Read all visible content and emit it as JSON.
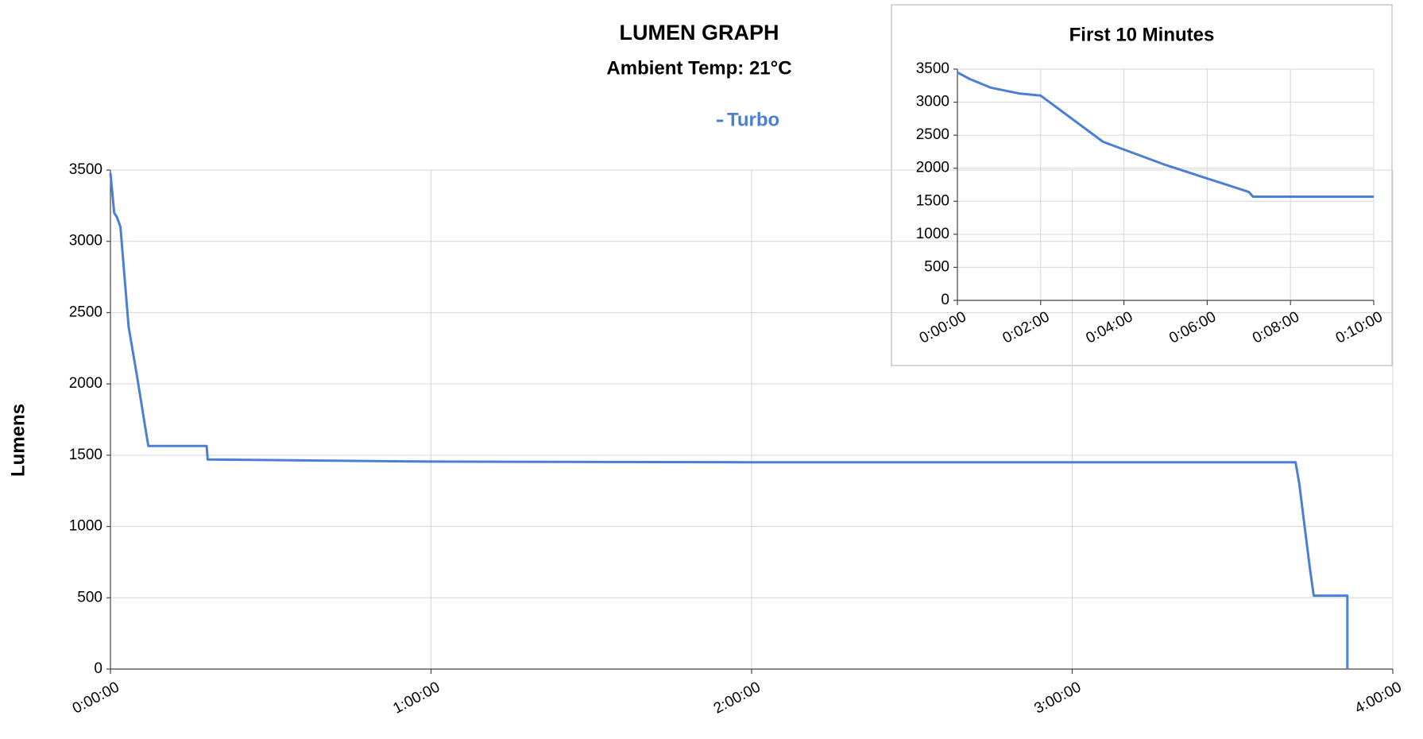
{
  "chart_data": [
    {
      "type": "line",
      "title": "LUMEN GRAPH",
      "subtitle": "Ambient Temp: 21°C",
      "y_label": "Lumens",
      "series": [
        {
          "name": "Turbo",
          "color": "#4a7fd4",
          "x": [
            0,
            0.7,
            1.2,
            1.6,
            1.87,
            3.4,
            5.0,
            6.5,
            7.1,
            18.0,
            18.2,
            60,
            120,
            180,
            221.8,
            222.5,
            223.5,
            224.5,
            225.2,
            231.5,
            231.5
          ],
          "values": [
            3480,
            3200,
            3170,
            3130,
            3100,
            2400,
            2050,
            1700,
            1565,
            1565,
            1470,
            1455,
            1450,
            1450,
            1450,
            1300,
            1000,
            700,
            515,
            515,
            0
          ]
        }
      ],
      "xlim": [
        0,
        240
      ],
      "xticks": [
        {
          "value": 0,
          "label": "0:00:00"
        },
        {
          "value": 60,
          "label": "1:00:00"
        },
        {
          "value": 120,
          "label": "2:00:00"
        },
        {
          "value": 180,
          "label": "3:00:00"
        },
        {
          "value": 240,
          "label": "4:00:00"
        }
      ],
      "ylim": [
        0,
        3500
      ],
      "yticks": [
        0,
        500,
        1000,
        1500,
        2000,
        2500,
        3000,
        3500
      ],
      "grid": true,
      "legend": "top"
    },
    {
      "type": "line",
      "title": "First 10 Minutes",
      "series": [
        {
          "name": "Turbo",
          "color": "#4a7fd4",
          "x": [
            0,
            0.3,
            0.8,
            1.5,
            2.0,
            3.5,
            5.0,
            7.0,
            7.1,
            10
          ],
          "values": [
            3450,
            3350,
            3220,
            3130,
            3100,
            2400,
            2050,
            1640,
            1570,
            1570
          ]
        }
      ],
      "xlim": [
        0,
        10
      ],
      "xticks": [
        {
          "value": 0,
          "label": "0:00:00"
        },
        {
          "value": 2,
          "label": "0:02:00"
        },
        {
          "value": 4,
          "label": "0:04:00"
        },
        {
          "value": 6,
          "label": "0:06:00"
        },
        {
          "value": 8,
          "label": "0:08:00"
        },
        {
          "value": 10,
          "label": "0:10:00"
        }
      ],
      "ylim": [
        0,
        3500
      ],
      "yticks": [
        0,
        500,
        1000,
        1500,
        2000,
        2500,
        3000,
        3500
      ],
      "grid": true
    }
  ]
}
